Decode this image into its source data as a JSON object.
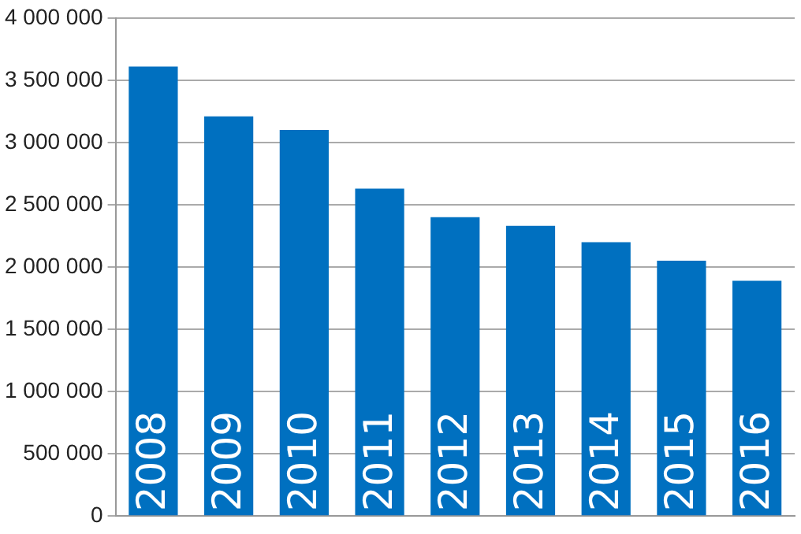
{
  "chart_data": {
    "type": "bar",
    "categories": [
      "2008",
      "2009",
      "2010",
      "2011",
      "2012",
      "2013",
      "2014",
      "2015",
      "2016"
    ],
    "values": [
      3610000,
      3210000,
      3100000,
      2630000,
      2400000,
      2330000,
      2200000,
      2050000,
      1890000
    ],
    "color": "#0070c0",
    "ylim": [
      0,
      4000000
    ],
    "yticks": [
      {
        "value": 0,
        "label": "0"
      },
      {
        "value": 500000,
        "label": "500 000"
      },
      {
        "value": 1000000,
        "label": "1 000 000"
      },
      {
        "value": 1500000,
        "label": "1 500 000"
      },
      {
        "value": 2000000,
        "label": "2 000 000"
      },
      {
        "value": 2500000,
        "label": "2 500 000"
      },
      {
        "value": 3000000,
        "label": "3 000 000"
      },
      {
        "value": 3500000,
        "label": "3 500 000"
      },
      {
        "value": 4000000,
        "label": "4 000 000"
      }
    ],
    "grid": "y",
    "legend": false
  }
}
